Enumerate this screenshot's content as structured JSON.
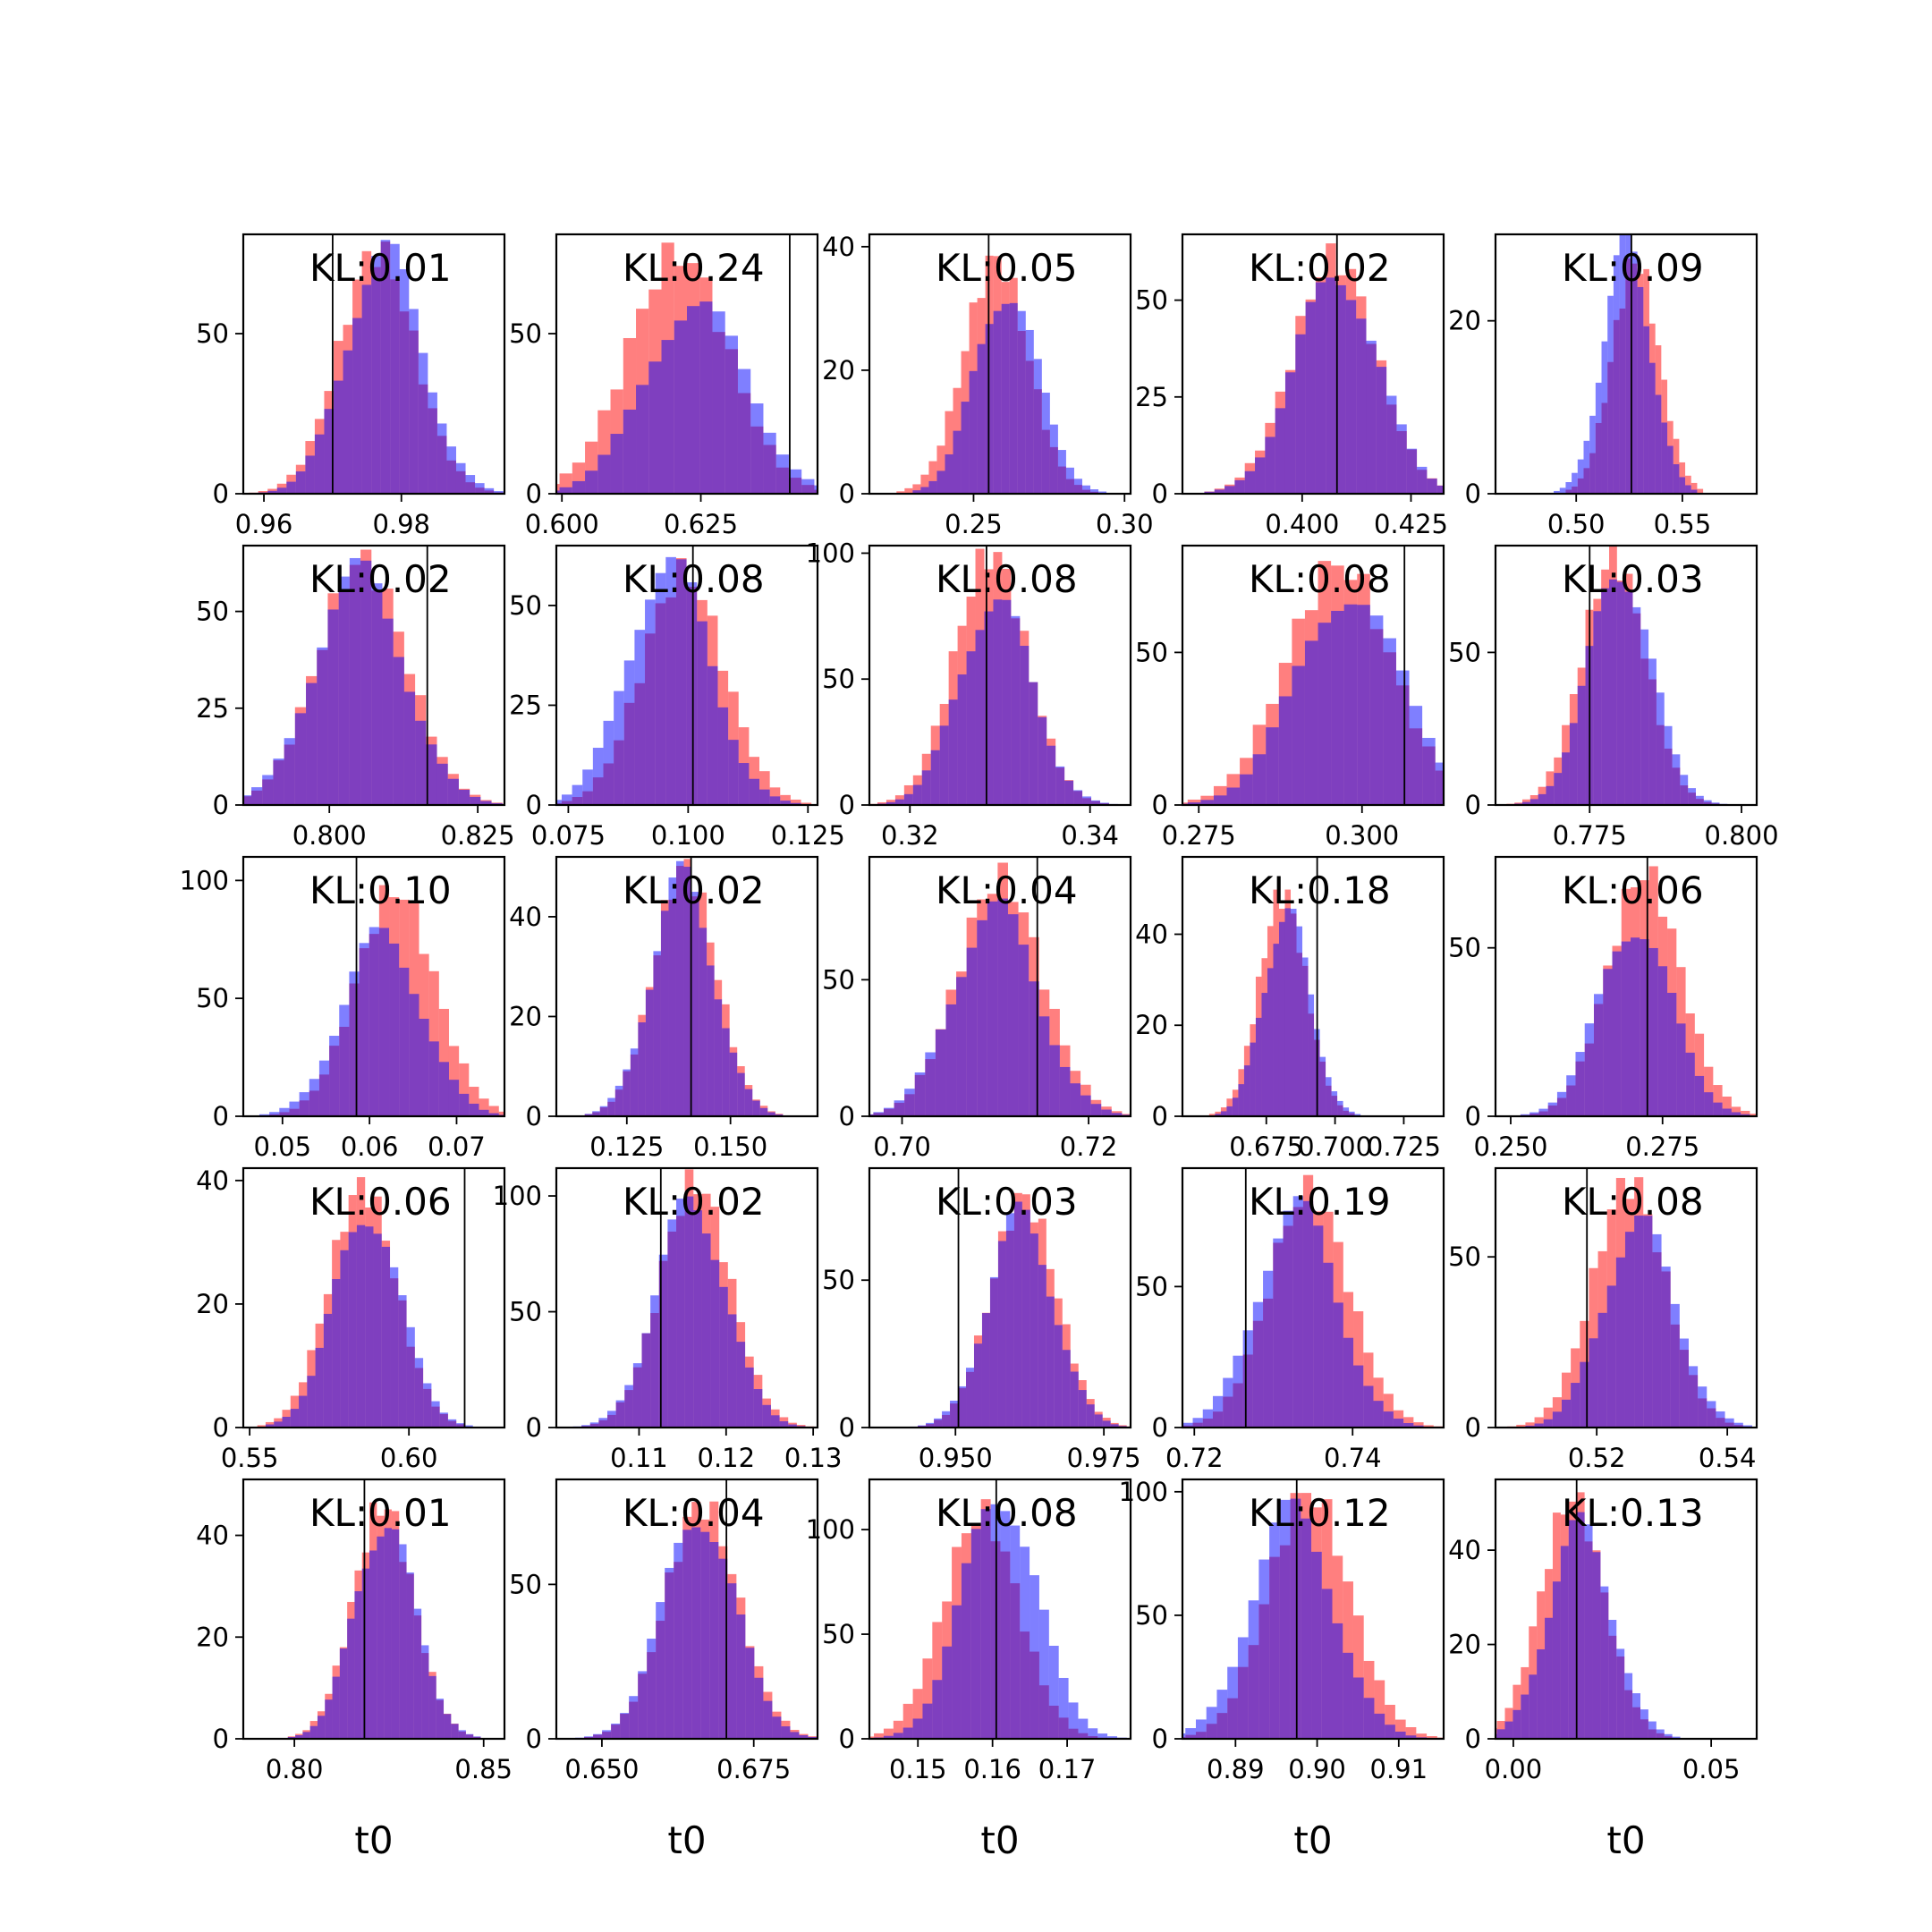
{
  "figure": {
    "colors": {
      "sample_a": "#ff0000",
      "sample_b": "#0000ff",
      "overlap": "#7f3fbf",
      "truth_line": "#000000"
    },
    "opacity": 0.5,
    "row_labels_x": "t0"
  },
  "chart_data": [
    {
      "type": "bar",
      "kl_text": "KL:0.01",
      "mean_a": 0.9765,
      "mean_b": 0.9775,
      "sd": 0.0055,
      "peak_a": 76,
      "peak_b": 76,
      "truth": 0.97,
      "xlim": [
        0.957,
        0.995
      ],
      "ylim": [
        0,
        81
      ],
      "xticks": [
        0.96,
        0.98
      ],
      "xtick_labels": [
        "0.96",
        "0.98"
      ],
      "yticks": [
        0,
        50
      ],
      "ytick_labels": [
        "0",
        "50"
      ],
      "xlabel": ""
    },
    {
      "type": "bar",
      "kl_text": "KL:0.24",
      "mean_a": 0.621,
      "mean_b": 0.624,
      "sd": 0.009,
      "peak_a": 75,
      "peak_b": 60,
      "truth": 0.641,
      "xlim": [
        0.599,
        0.646
      ],
      "ylim": [
        0,
        81
      ],
      "xticks": [
        0.6,
        0.625
      ],
      "xtick_labels": [
        "0.600",
        "0.625"
      ],
      "yticks": [
        0,
        50
      ],
      "ytick_labels": [
        "0",
        "50"
      ],
      "xlabel": ""
    },
    {
      "type": "bar",
      "kl_text": "KL:0.05",
      "mean_a": 0.2575,
      "mean_b": 0.261,
      "sd": 0.0105,
      "peak_a": 38,
      "peak_b": 33,
      "truth": 0.255,
      "xlim": [
        0.2155,
        0.302
      ],
      "ylim": [
        0,
        42
      ],
      "xticks": [
        0.25,
        0.3
      ],
      "xtick_labels": [
        "0.25",
        "0.30"
      ],
      "yticks": [
        0,
        20,
        40
      ],
      "ytick_labels": [
        "0",
        "20",
        "40"
      ],
      "xlabel": ""
    },
    {
      "type": "bar",
      "kl_text": "KL:0.02",
      "mean_a": 0.4075,
      "mean_b": 0.408,
      "sd": 0.0095,
      "peak_a": 61,
      "peak_b": 57,
      "truth": 0.408,
      "xlim": [
        0.3725,
        0.4325
      ],
      "ylim": [
        0,
        67
      ],
      "xticks": [
        0.4,
        0.425
      ],
      "xtick_labels": [
        "0.400",
        "0.425"
      ],
      "yticks": [
        0,
        25,
        50
      ],
      "ytick_labels": [
        "0",
        "25",
        "50"
      ],
      "xlabel": ""
    },
    {
      "type": "bar",
      "kl_text": "KL:0.09",
      "mean_a": 0.528,
      "mean_b": 0.524,
      "sd": 0.011,
      "peak_a": 27,
      "peak_b": 29,
      "truth": 0.526,
      "xlim": [
        0.462,
        0.585
      ],
      "ylim": [
        0,
        30
      ],
      "xticks": [
        0.5,
        0.55
      ],
      "xtick_labels": [
        "0.50",
        "0.55"
      ],
      "yticks": [
        0,
        20
      ],
      "ytick_labels": [
        "0",
        "20"
      ],
      "xlabel": ""
    },
    {
      "type": "bar",
      "kl_text": "KL:0.02",
      "mean_a": 0.8055,
      "mean_b": 0.805,
      "sd": 0.0075,
      "peak_a": 63,
      "peak_b": 60,
      "truth": 0.8165,
      "xlim": [
        0.7855,
        0.8295
      ],
      "ylim": [
        0,
        67
      ],
      "xticks": [
        0.8,
        0.825
      ],
      "xtick_labels": [
        "0.800",
        "0.825"
      ],
      "yticks": [
        0,
        25,
        50
      ],
      "ytick_labels": [
        "0",
        "25",
        "50"
      ],
      "xlabel": ""
    },
    {
      "type": "bar",
      "kl_text": "KL:0.08",
      "mean_a": 0.099,
      "mean_b": 0.096,
      "sd": 0.0085,
      "peak_a": 58,
      "peak_b": 61,
      "truth": 0.101,
      "xlim": [
        0.0725,
        0.127
      ],
      "ylim": [
        0,
        65
      ],
      "xticks": [
        0.075,
        0.1,
        0.125
      ],
      "xtick_labels": [
        "0.075",
        "0.100",
        "0.125"
      ],
      "yticks": [
        0,
        25,
        50
      ],
      "ytick_labels": [
        "0",
        "25",
        "50"
      ],
      "xlabel": ""
    },
    {
      "type": "bar",
      "kl_text": "KL:0.08",
      "mean_a": 0.329,
      "mean_b": 0.3295,
      "sd": 0.004,
      "peak_a": 100,
      "peak_b": 82,
      "truth": 0.3285,
      "xlim": [
        0.3155,
        0.3445
      ],
      "ylim": [
        0,
        103
      ],
      "xticks": [
        0.32,
        0.34
      ],
      "xtick_labels": [
        "0.32",
        "0.34"
      ],
      "yticks": [
        0,
        50,
        100
      ],
      "ytick_labels": [
        "0",
        "50",
        "100"
      ],
      "xlabel": ""
    },
    {
      "type": "bar",
      "kl_text": "KL:0.08",
      "mean_a": 0.2965,
      "mean_b": 0.298,
      "sd": 0.008,
      "peak_a": 79,
      "peak_b": 70,
      "truth": 0.3065,
      "xlim": [
        0.2725,
        0.3125
      ],
      "ylim": [
        0,
        85
      ],
      "xticks": [
        0.275,
        0.3
      ],
      "xtick_labels": [
        "0.275",
        "0.300"
      ],
      "yticks": [
        0,
        50
      ],
      "ytick_labels": [
        "0",
        "50"
      ],
      "xlabel": ""
    },
    {
      "type": "bar",
      "kl_text": "KL:0.03",
      "mean_a": 0.779,
      "mean_b": 0.78,
      "sd": 0.0052,
      "peak_a": 81,
      "peak_b": 78,
      "truth": 0.775,
      "xlim": [
        0.7595,
        0.8025
      ],
      "ylim": [
        0,
        85
      ],
      "xticks": [
        0.775,
        0.8
      ],
      "xtick_labels": [
        "0.775",
        "0.800"
      ],
      "yticks": [
        0,
        50
      ],
      "ytick_labels": [
        "0",
        "50"
      ],
      "xlabel": ""
    },
    {
      "type": "bar",
      "kl_text": "KL:0.10",
      "mean_a": 0.063,
      "mean_b": 0.0615,
      "sd": 0.0045,
      "peak_a": 96,
      "peak_b": 77,
      "truth": 0.0585,
      "xlim": [
        0.0455,
        0.0755
      ],
      "ylim": [
        0,
        110
      ],
      "xticks": [
        0.05,
        0.06,
        0.07
      ],
      "xtick_labels": [
        "0.05",
        "0.06",
        "0.07"
      ],
      "yticks": [
        0,
        50,
        100
      ],
      "ytick_labels": [
        "0",
        "50",
        "100"
      ],
      "xlabel": ""
    },
    {
      "type": "bar",
      "kl_text": "KL:0.02",
      "mean_a": 0.139,
      "mean_b": 0.1385,
      "sd": 0.0075,
      "peak_a": 50,
      "peak_b": 48,
      "truth": 0.1405,
      "xlim": [
        0.108,
        0.171
      ],
      "ylim": [
        0,
        52
      ],
      "xticks": [
        0.125,
        0.15
      ],
      "xtick_labels": [
        "0.125",
        "0.150"
      ],
      "yticks": [
        0,
        20,
        40
      ],
      "ytick_labels": [
        "0",
        "20",
        "40"
      ],
      "xlabel": ""
    },
    {
      "type": "bar",
      "kl_text": "KL:0.04",
      "mean_a": 0.7105,
      "mean_b": 0.71,
      "sd": 0.0045,
      "peak_a": 87,
      "peak_b": 76,
      "truth": 0.7145,
      "xlim": [
        0.6965,
        0.7245
      ],
      "ylim": [
        0,
        95
      ],
      "xticks": [
        0.7,
        0.72
      ],
      "xtick_labels": [
        "0.70",
        "0.72"
      ],
      "yticks": [
        0,
        50
      ],
      "ytick_labels": [
        "0",
        "50"
      ],
      "xlabel": ""
    },
    {
      "type": "bar",
      "kl_text": "KL:0.18",
      "mean_a": 0.681,
      "mean_b": 0.6825,
      "sd": 0.0085,
      "peak_a": 49,
      "peak_b": 45,
      "truth": 0.6935,
      "xlim": [
        0.6445,
        0.7395
      ],
      "ylim": [
        0,
        57
      ],
      "xticks": [
        0.675,
        0.7,
        0.725
      ],
      "xtick_labels": [
        "0.675",
        "0.700",
        "0.725"
      ],
      "yticks": [
        0,
        20,
        40
      ],
      "ytick_labels": [
        "0",
        "20",
        "40"
      ],
      "xlabel": ""
    },
    {
      "type": "bar",
      "kl_text": "KL:0.06",
      "mean_a": 0.272,
      "mean_b": 0.2705,
      "sd": 0.006,
      "peak_a": 72,
      "peak_b": 57,
      "truth": 0.2725,
      "xlim": [
        0.2475,
        0.2905
      ],
      "ylim": [
        0,
        77
      ],
      "xticks": [
        0.25,
        0.275
      ],
      "xtick_labels": [
        "0.250",
        "0.275"
      ],
      "yticks": [
        0,
        50
      ],
      "ytick_labels": [
        "0",
        "50"
      ],
      "xlabel": ""
    },
    {
      "type": "bar",
      "kl_text": "KL:0.06",
      "mean_a": 0.5855,
      "mean_b": 0.587,
      "sd": 0.0105,
      "peak_a": 39,
      "peak_b": 35,
      "truth": 0.6175,
      "xlim": [
        0.548,
        0.63
      ],
      "ylim": [
        0,
        42
      ],
      "xticks": [
        0.55,
        0.6
      ],
      "xtick_labels": [
        "0.55",
        "0.60"
      ],
      "yticks": [
        0,
        20,
        40
      ],
      "ytick_labels": [
        "0",
        "20",
        "40"
      ],
      "xlabel": ""
    },
    {
      "type": "bar",
      "kl_text": "KL:0.02",
      "mean_a": 0.1165,
      "mean_b": 0.116,
      "sd": 0.004,
      "peak_a": 106,
      "peak_b": 98,
      "truth": 0.1125,
      "xlim": [
        0.1005,
        0.1305
      ],
      "ylim": [
        0,
        112
      ],
      "xticks": [
        0.11,
        0.12,
        0.13
      ],
      "xtick_labels": [
        "0.11",
        "0.12",
        "0.13"
      ],
      "yticks": [
        0,
        50,
        100
      ],
      "ytick_labels": [
        "0",
        "50",
        "100"
      ],
      "xlabel": ""
    },
    {
      "type": "bar",
      "kl_text": "KL:0.03",
      "mean_a": 0.9615,
      "mean_b": 0.961,
      "sd": 0.0055,
      "peak_a": 78,
      "peak_b": 72,
      "truth": 0.9505,
      "xlim": [
        0.9355,
        0.9795
      ],
      "ylim": [
        0,
        88
      ],
      "xticks": [
        0.95,
        0.975
      ],
      "xtick_labels": [
        "0.950",
        "0.975"
      ],
      "yticks": [
        0,
        50
      ],
      "ytick_labels": [
        "0",
        "50"
      ],
      "xlabel": ""
    },
    {
      "type": "bar",
      "kl_text": "KL:0.19",
      "mean_a": 0.7345,
      "mean_b": 0.733,
      "sd": 0.005,
      "peak_a": 84,
      "peak_b": 78,
      "truth": 0.7265,
      "xlim": [
        0.7185,
        0.7515
      ],
      "ylim": [
        0,
        92
      ],
      "xticks": [
        0.72,
        0.74
      ],
      "xtick_labels": [
        "0.72",
        "0.74"
      ],
      "yticks": [
        0,
        50
      ],
      "ytick_labels": [
        "0",
        "50"
      ],
      "xlabel": ""
    },
    {
      "type": "bar",
      "kl_text": "KL:0.08",
      "mean_a": 0.525,
      "mean_b": 0.5265,
      "sd": 0.0055,
      "peak_a": 72,
      "peak_b": 60,
      "truth": 0.5185,
      "xlim": [
        0.5045,
        0.5445
      ],
      "ylim": [
        0,
        76
      ],
      "xticks": [
        0.52,
        0.54
      ],
      "xtick_labels": [
        "0.52",
        "0.54"
      ],
      "yticks": [
        0,
        50
      ],
      "ytick_labels": [
        "0",
        "50"
      ],
      "xlabel": ""
    },
    {
      "type": "bar",
      "kl_text": "KL:0.01",
      "mean_a": 0.8235,
      "mean_b": 0.824,
      "sd": 0.008,
      "peak_a": 46,
      "peak_b": 43,
      "truth": 0.8185,
      "xlim": [
        0.7865,
        0.8555
      ],
      "ylim": [
        0,
        51
      ],
      "xticks": [
        0.8,
        0.85
      ],
      "xtick_labels": [
        "0.80",
        "0.85"
      ],
      "yticks": [
        0,
        20,
        40
      ],
      "ytick_labels": [
        "0",
        "20",
        "40"
      ],
      "xlabel": "t0"
    },
    {
      "type": "bar",
      "kl_text": "KL:0.04",
      "mean_a": 0.6665,
      "mean_b": 0.666,
      "sd": 0.006,
      "peak_a": 76,
      "peak_b": 73,
      "truth": 0.6705,
      "xlim": [
        0.6425,
        0.6855
      ],
      "ylim": [
        0,
        84
      ],
      "xticks": [
        0.65,
        0.675
      ],
      "xtick_labels": [
        "0.650",
        "0.675"
      ],
      "yticks": [
        0,
        50
      ],
      "ytick_labels": [
        "0",
        "50"
      ],
      "xlabel": "t0"
    },
    {
      "type": "bar",
      "kl_text": "KL:0.08",
      "mean_a": 0.1585,
      "mean_b": 0.161,
      "sd": 0.005,
      "peak_a": 108,
      "peak_b": 118,
      "truth": 0.1605,
      "xlim": [
        0.1435,
        0.1785
      ],
      "ylim": [
        0,
        124
      ],
      "xticks": [
        0.15,
        0.16,
        0.17
      ],
      "xtick_labels": [
        "0.15",
        "0.16",
        "0.17"
      ],
      "yticks": [
        0,
        50,
        100
      ],
      "ytick_labels": [
        "0",
        "50",
        "100"
      ],
      "xlabel": "t0"
    },
    {
      "type": "bar",
      "kl_text": "KL:0.12",
      "mean_a": 0.899,
      "mean_b": 0.897,
      "sd": 0.005,
      "peak_a": 100,
      "peak_b": 92,
      "truth": 0.8975,
      "xlim": [
        0.8835,
        0.9155
      ],
      "ylim": [
        0,
        105
      ],
      "xticks": [
        0.89,
        0.9,
        0.91
      ],
      "xtick_labels": [
        "0.89",
        "0.90",
        "0.91"
      ],
      "yticks": [
        0,
        50,
        100
      ],
      "ytick_labels": [
        "0",
        "50",
        "100"
      ],
      "xlabel": "t0"
    },
    {
      "type": "bar",
      "kl_text": "KL:0.13",
      "mean_a": 0.015,
      "mean_b": 0.017,
      "sd": 0.008,
      "peak_a": 51,
      "peak_b": 45,
      "truth": 0.016,
      "xlim": [
        -0.0045,
        0.0615
      ],
      "ylim": [
        0,
        55
      ],
      "xticks": [
        0,
        0.05
      ],
      "xtick_labels": [
        "0.00",
        "0.05"
      ],
      "yticks": [
        0,
        20,
        40
      ],
      "ytick_labels": [
        "0",
        "20",
        "40"
      ],
      "xlabel": "t0"
    }
  ]
}
